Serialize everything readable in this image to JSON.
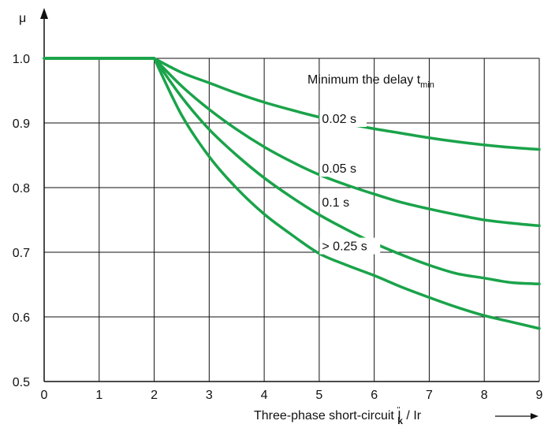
{
  "chart_data": {
    "type": "line",
    "ylabel": "μ",
    "xlabel": {
      "main": "Three-phase short-circuit I",
      "super": "\"",
      "sub": "k",
      "tail": " / Ir"
    },
    "legend_title": {
      "main": "Minimum the delay t",
      "sub": "min"
    },
    "xlim": [
      0,
      9
    ],
    "ylim": [
      0.5,
      1.0
    ],
    "xticks": [
      "0",
      "1",
      "2",
      "3",
      "4",
      "5",
      "6",
      "7",
      "8",
      "9"
    ],
    "yticks": [
      "0.5",
      "0.6",
      "0.7",
      "0.8",
      "0.9",
      "1.0"
    ],
    "grid": true,
    "line_color": "#1aa34a",
    "series": [
      {
        "name": "0.02 s",
        "x": [
          0,
          2,
          2.5,
          3,
          3.5,
          4,
          4.5,
          5,
          5.5,
          6,
          6.5,
          7,
          7.5,
          8,
          8.5,
          9
        ],
        "y": [
          1.0,
          1.0,
          0.978,
          0.962,
          0.946,
          0.932,
          0.92,
          0.909,
          0.899,
          0.891,
          0.884,
          0.877,
          0.871,
          0.866,
          0.862,
          0.859
        ]
      },
      {
        "name": "0.05 s",
        "x": [
          0,
          2,
          2.5,
          3,
          3.5,
          4,
          4.5,
          5,
          5.5,
          6,
          6.5,
          7,
          7.5,
          8,
          8.5,
          9
        ],
        "y": [
          1.0,
          1.0,
          0.957,
          0.921,
          0.89,
          0.863,
          0.84,
          0.82,
          0.804,
          0.79,
          0.777,
          0.767,
          0.758,
          0.75,
          0.745,
          0.741
        ]
      },
      {
        "name": "0.1 s",
        "x": [
          0,
          2,
          2.5,
          3,
          3.5,
          4,
          4.5,
          5,
          5.5,
          6,
          6.5,
          7,
          7.5,
          8,
          8.5,
          9
        ],
        "y": [
          1.0,
          1.0,
          0.94,
          0.89,
          0.85,
          0.815,
          0.785,
          0.758,
          0.735,
          0.714,
          0.696,
          0.68,
          0.667,
          0.66,
          0.653,
          0.651
        ]
      },
      {
        "name": "> 0.25 s",
        "x": [
          0,
          2,
          2.5,
          3,
          3.5,
          4,
          4.5,
          5,
          5.5,
          6,
          6.5,
          7,
          7.5,
          8,
          8.5,
          9
        ],
        "y": [
          1.0,
          1.0,
          0.912,
          0.848,
          0.799,
          0.759,
          0.727,
          0.698,
          0.68,
          0.664,
          0.646,
          0.63,
          0.615,
          0.602,
          0.592,
          0.582
        ]
      }
    ]
  }
}
